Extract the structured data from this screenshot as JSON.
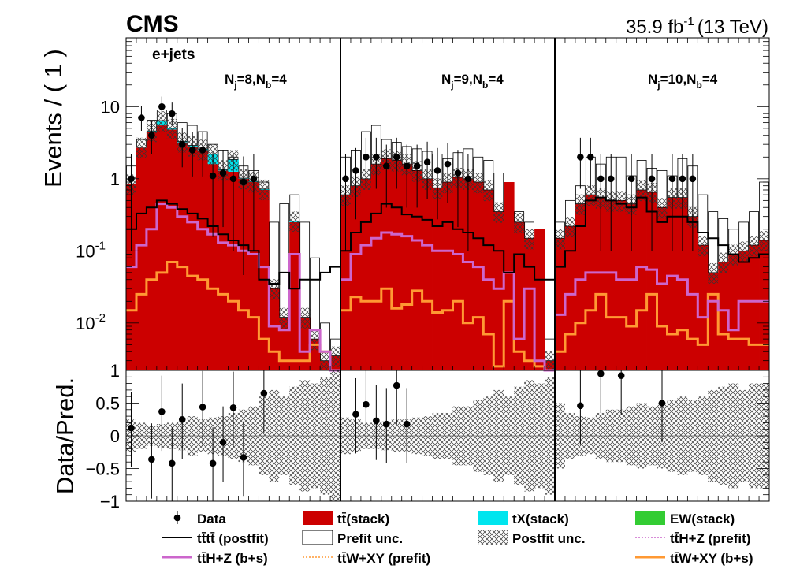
{
  "header": {
    "experiment": "CMS",
    "lumi_value": "35.9 fb",
    "lumi_exp": "-1",
    "energy": "(13 TeV)"
  },
  "chart_data": {
    "type": "bar",
    "scale": "log",
    "ylabel": "Events / ( 1 )",
    "ylim": [
      0.0022,
      90
    ],
    "yticks": [
      {
        "value": 10,
        "label": "10"
      },
      {
        "value": 1,
        "label": "1"
      },
      {
        "value": 0.1,
        "label": "10",
        "exp": "-1"
      },
      {
        "value": 0.01,
        "label": "10",
        "exp": "-2"
      }
    ],
    "channel_label": "e+jets",
    "regions": [
      {
        "nj": "8",
        "nb": "4",
        "label_main": "N",
        "label_j": "j",
        "label_eq1": "=8,N",
        "label_b": "b",
        "label_eq2": "=4"
      },
      {
        "nj": "9",
        "nb": "4",
        "label_main": "N",
        "label_j": "j",
        "label_eq1": "=9,N",
        "label_b": "b",
        "label_eq2": "=4"
      },
      {
        "nj": "10",
        "nb": "4",
        "label_main": "N",
        "label_j": "j",
        "label_eq1": "=10,N",
        "label_b": "b",
        "label_eq2": "=4"
      }
    ],
    "series": [
      {
        "name": "ttbar_stack",
        "color": "#cc0000",
        "values": [
          [
            0.85,
            2.7,
            4.5,
            5.5,
            4.8,
            3.2,
            2.8,
            2.5,
            1.6,
            1.3,
            1.25,
            1.0,
            0.9,
            0.7,
            0.03,
            0.012,
            0.25,
            0.012,
            0.006,
            0.003,
            0.0035
          ],
          [
            0.6,
            0.8,
            1.0,
            1.6,
            1.9,
            1.8,
            1.6,
            1.3,
            1.0,
            0.75,
            0.9,
            1.05,
            1.0,
            0.9,
            0.7,
            0.35,
            0.9,
            0.25,
            0.15,
            0.2,
            0.003
          ],
          [
            0.15,
            0.22,
            0.45,
            0.6,
            0.55,
            0.5,
            0.5,
            0.45,
            0.7,
            0.65,
            0.4,
            0.55,
            0.55,
            0.3,
            0.12,
            0.05,
            0.07,
            0.09,
            0.1,
            0.12,
            0.14
          ]
        ]
      },
      {
        "name": "tX_stack",
        "color": "#00e5ee",
        "values": [
          [
            0,
            0.04,
            0.1,
            0.9,
            0.2,
            0.1,
            0.1,
            0.08,
            0.6,
            0.04,
            0.6,
            0.02,
            0.02,
            0.02,
            0,
            0,
            0.01,
            0,
            0,
            0,
            0
          ],
          [
            0,
            0,
            0,
            0,
            0,
            0,
            0,
            0,
            0,
            0,
            0,
            0,
            0,
            0,
            0,
            0,
            0,
            0,
            0,
            0,
            0
          ],
          [
            0,
            0,
            0,
            0,
            0,
            0,
            0,
            0,
            0,
            0,
            0,
            0,
            0,
            0,
            0,
            0,
            0,
            0,
            0,
            0,
            0
          ]
        ]
      },
      {
        "name": "EW_stack",
        "color": "#33cc33",
        "values": [
          [
            0,
            0,
            0,
            0,
            0,
            0,
            0,
            0,
            0,
            0,
            0,
            0,
            0,
            0,
            0,
            0,
            0,
            0,
            0,
            0,
            0
          ],
          [
            0,
            0,
            0,
            0,
            0,
            0,
            0,
            0,
            0,
            0,
            0,
            0,
            0,
            0,
            0,
            0,
            0,
            0,
            0,
            0,
            0
          ],
          [
            0,
            0,
            0,
            0,
            0,
            0,
            0,
            0,
            0,
            0,
            0,
            0,
            0,
            0,
            0,
            0,
            0,
            0,
            0,
            0,
            0
          ]
        ]
      },
      {
        "name": "ttH_Z_bs",
        "color": "#cc66cc",
        "values": [
          [
            0.06,
            0.12,
            0.2,
            0.45,
            0.4,
            0.3,
            0.25,
            0.2,
            0.17,
            0.13,
            0.12,
            0.1,
            0.09,
            0.06,
            0.009,
            0.008,
            0.09,
            0.004,
            0.008,
            0.004,
            0
          ],
          [
            0.04,
            0.09,
            0.12,
            0.15,
            0.18,
            0.17,
            0.16,
            0.14,
            0.12,
            0.1,
            0.1,
            0.09,
            0.07,
            0.06,
            0.04,
            0.03,
            0.05,
            0.006,
            0.03,
            0.003,
            0
          ],
          [
            0.013,
            0.025,
            0.04,
            0.05,
            0.05,
            0.05,
            0.04,
            0.04,
            0.06,
            0.055,
            0.035,
            0.045,
            0.04,
            0.025,
            0.012,
            0.02,
            0.015,
            0.008,
            0.02,
            0.02,
            0.02
          ]
        ]
      },
      {
        "name": "ttW_XY_bs",
        "color": "#ff9933",
        "values": [
          [
            0.015,
            0.025,
            0.04,
            0.05,
            0.07,
            0.06,
            0.045,
            0.04,
            0.03,
            0.025,
            0.02,
            0.015,
            0.012,
            0.006,
            0.004,
            0.003,
            0.003,
            0.003,
            0.005,
            0.004,
            0.002
          ],
          [
            0.015,
            0.023,
            0.02,
            0.02,
            0.03,
            0.016,
            0.018,
            0.028,
            0.02,
            0.014,
            0.015,
            0.02,
            0.01,
            0.012,
            0.007,
            0.0025,
            0.02,
            0.004,
            0.003,
            0.0025,
            0.002
          ],
          [
            0.004,
            0.007,
            0.01,
            0.015,
            0.025,
            0.012,
            0.012,
            0.009,
            0.015,
            0.025,
            0.009,
            0.007,
            0.008,
            0.006,
            0.005,
            0.025,
            0.007,
            0.006,
            0.006,
            0.005,
            0.005
          ]
        ]
      },
      {
        "name": "tttt_postfit",
        "color": "#000000",
        "values": [
          [
            0.2,
            0.33,
            0.4,
            0.5,
            0.45,
            0.38,
            0.33,
            0.28,
            0.22,
            0.17,
            0.14,
            0.12,
            0.1,
            0.04,
            0.035,
            0.05,
            0.03,
            0.04,
            0.04,
            0.05,
            0.06
          ],
          [
            0.1,
            0.18,
            0.25,
            0.33,
            0.45,
            0.4,
            0.32,
            0.3,
            0.27,
            0.22,
            0.25,
            0.2,
            0.18,
            0.15,
            0.12,
            0.1,
            0.05,
            0.09,
            0.06,
            0.04,
            0.04
          ],
          [
            0.06,
            0.1,
            0.22,
            0.5,
            0.55,
            0.5,
            0.45,
            0.4,
            0.55,
            0.35,
            0.25,
            0.3,
            0.3,
            0.25,
            0.18,
            0.15,
            0.12,
            0.09,
            0.07,
            0.08,
            0.09
          ]
        ]
      }
    ],
    "prefit_unc": [
      [
        1.5,
        3.5,
        6.5,
        9,
        8,
        6,
        5.5,
        4.5,
        3,
        2.5,
        2,
        1.5,
        1.3,
        0.9,
        0.25,
        0.45,
        0.6,
        0.25,
        0.08,
        0.01,
        0.006
      ],
      [
        2,
        2.5,
        4.5,
        5.5,
        3.5,
        3.2,
        2.8,
        2.6,
        2.4,
        2.2,
        1.9,
        2.3,
        2.6,
        2,
        1.8,
        1.2,
        0.8,
        0.35,
        0.25,
        0.1,
        0.006
      ],
      [
        0.25,
        0.5,
        0.8,
        2,
        1.6,
        2,
        2,
        1.1,
        1.8,
        1.4,
        1.3,
        1.1,
        1.9,
        1.5,
        0.6,
        0.35,
        0.28,
        0.2,
        0.25,
        0.35,
        0.9
      ]
    ],
    "data": [
      [
        1,
        7,
        4,
        10,
        8,
        3,
        2.5,
        2.5,
        1.1,
        1.2,
        1,
        0.9,
        1,
        0,
        0,
        0,
        0,
        0,
        0,
        0,
        0
      ],
      [
        1,
        1.3,
        2,
        2,
        1.5,
        2,
        1.5,
        1.5,
        1.7,
        1.3,
        1.6,
        1.2,
        1,
        0,
        0,
        0,
        0,
        0,
        0,
        0,
        0
      ],
      [
        0,
        0,
        2,
        2,
        1,
        1,
        0,
        1,
        0,
        1,
        0,
        1,
        1,
        1,
        0,
        0,
        0,
        0,
        0,
        0,
        0
      ]
    ],
    "ratio": {
      "ylabel": "Data/Pred.",
      "ylim": [
        -1,
        1
      ],
      "yticks": [
        {
          "value": 1,
          "label": "1"
        },
        {
          "value": 0.5,
          "label": "0.5"
        },
        {
          "value": 0,
          "label": "0"
        },
        {
          "value": -0.5,
          "label": "−0.5"
        },
        {
          "value": -1,
          "label": "−1"
        }
      ],
      "postfit_band": [
        [
          0.25,
          0.2,
          0.15,
          0.18,
          0.2,
          0.22,
          0.3,
          0.25,
          0.28,
          0.3,
          0.35,
          0.4,
          0.45,
          0.6,
          0.7,
          0.6,
          0.75,
          0.85,
          0.8,
          0.9,
          1
        ],
        [
          0.28,
          0.25,
          0.2,
          0.2,
          0.22,
          0.25,
          0.25,
          0.28,
          0.3,
          0.35,
          0.35,
          0.45,
          0.45,
          0.55,
          0.6,
          0.7,
          0.6,
          0.75,
          0.85,
          0.8,
          0.9
        ],
        [
          0.5,
          0.35,
          0.3,
          0.28,
          0.35,
          0.4,
          0.4,
          0.45,
          0.5,
          0.45,
          0.5,
          0.55,
          0.6,
          0.55,
          0.6,
          0.7,
          0.75,
          0.8,
          0.7,
          0.8,
          0.8
        ]
      ],
      "points": [
        [
          0.12,
          0,
          -0.36,
          0.37,
          -0.42,
          0.25,
          0,
          0.44,
          -0.42,
          -0.1,
          0.43,
          -0.33,
          0,
          0.65,
          0,
          0,
          0,
          0,
          0,
          0,
          0
        ],
        [
          0,
          0.33,
          0.48,
          0.23,
          0.18,
          0.77,
          0.18,
          0,
          0,
          0,
          0,
          0,
          0,
          0,
          0,
          0,
          0,
          0,
          0,
          0,
          0
        ],
        [
          0,
          0,
          0.46,
          0,
          0.95,
          0,
          0.92,
          0,
          0,
          0,
          0.5,
          0,
          0,
          0,
          0,
          0,
          0,
          0,
          0,
          0,
          0
        ]
      ]
    },
    "legend_placement": "bottom",
    "legend": [
      {
        "key": "data",
        "label": "Data"
      },
      {
        "key": "ttbar",
        "label": "tt̄(stack)"
      },
      {
        "key": "tx",
        "label": "tX(stack)"
      },
      {
        "key": "ew",
        "label": "EW(stack)"
      },
      {
        "key": "tttt",
        "label": "tt̄tt̄ (postfit)"
      },
      {
        "key": "prefit",
        "label": "Prefit unc."
      },
      {
        "key": "postfit",
        "label": "Postfit unc."
      },
      {
        "key": "tthz_pre",
        "label": "tt̄H+Z (prefit)"
      },
      {
        "key": "tthz_bs",
        "label": "tt̄H+Z (b+s)"
      },
      {
        "key": "ttwxy_pre",
        "label": "tt̄W+XY (prefit)"
      },
      {
        "key": "ttwxy_bs",
        "label": "tt̄W+XY (b+s)"
      }
    ]
  }
}
